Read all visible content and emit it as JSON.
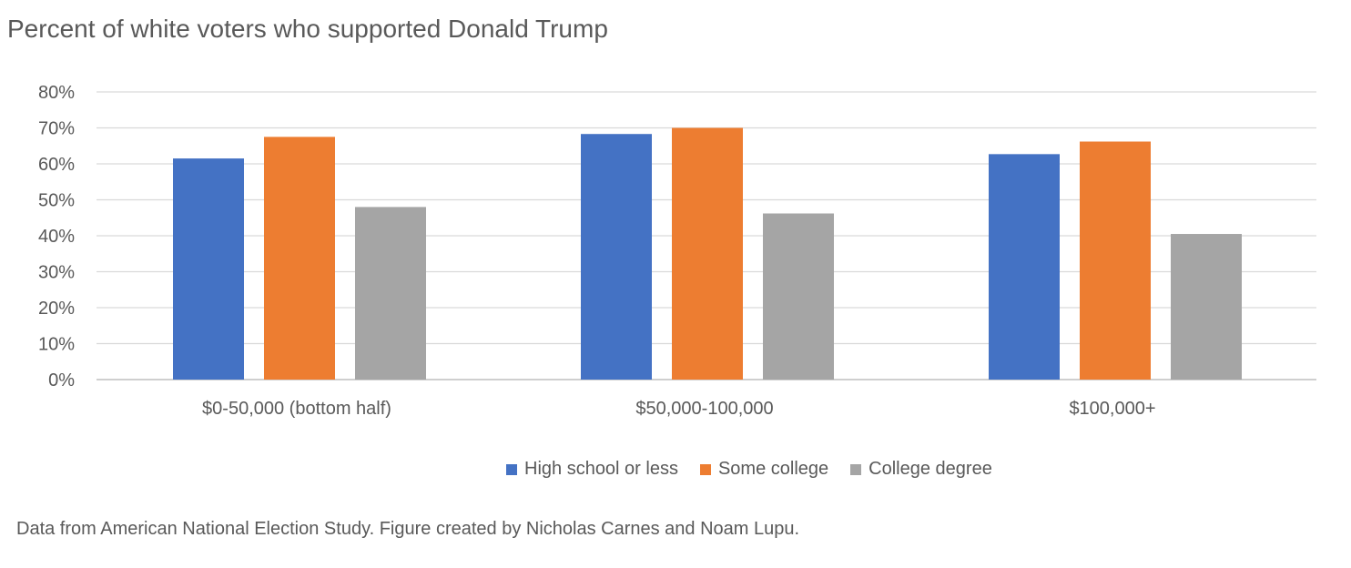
{
  "chart_data": {
    "type": "bar",
    "title": "Percent of white voters who supported Donald Trump",
    "categories": [
      "$0-50,000 (bottom half)",
      "$50,000-100,000",
      "$100,000+"
    ],
    "series": [
      {
        "name": "High school or less",
        "values": [
          61.5,
          68.3,
          62.7
        ],
        "color": "#4472C4"
      },
      {
        "name": "Some college",
        "values": [
          67.5,
          70.0,
          66.2
        ],
        "color": "#ED7D31"
      },
      {
        "name": "College degree",
        "values": [
          48.0,
          46.2,
          40.5
        ],
        "color": "#A5A5A5"
      }
    ],
    "ylim": [
      0,
      80
    ],
    "yticks": [
      0,
      10,
      20,
      30,
      40,
      50,
      60,
      70,
      80
    ],
    "ytick_labels": [
      "0%",
      "10%",
      "20%",
      "30%",
      "40%",
      "50%",
      "60%",
      "70%",
      "80%"
    ],
    "grid": true,
    "legend_position": "bottom",
    "xlabel": "",
    "ylabel": "",
    "footnote": "Data from American National Election Study. Figure created by Nicholas Carnes and Noam Lupu."
  }
}
